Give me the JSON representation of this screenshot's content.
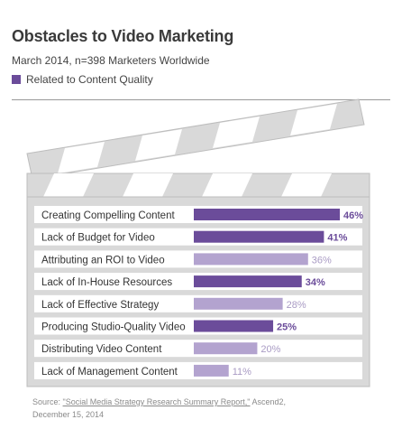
{
  "title": "Obstacles to Video Marketing",
  "subtitle": "March 2014, n=398 Marketers Worldwide",
  "legend": {
    "label": "Related to Content Quality",
    "color": "#6b4c9a"
  },
  "colors": {
    "highlight": "#6b4c9a",
    "normal": "#b3a3cf",
    "clapper_fill": "#d9d9d9",
    "clapper_stroke": "#bdbdbd"
  },
  "chart_data": {
    "type": "bar",
    "orientation": "horizontal",
    "categories": [
      "Creating Compelling Content",
      "Lack of Budget for Video",
      "Attributing an ROI to Video",
      "Lack of In-House Resources",
      "Lack of Effective Strategy",
      "Producing Studio-Quality Video",
      "Distributing Video Content",
      "Lack of Management Content"
    ],
    "values": [
      46,
      41,
      36,
      34,
      28,
      25,
      20,
      11
    ],
    "value_labels": [
      "46%",
      "41%",
      "36%",
      "34%",
      "28%",
      "25%",
      "20%",
      "11%"
    ],
    "highlighted": [
      true,
      true,
      false,
      true,
      false,
      true,
      false,
      false
    ],
    "unit": "%",
    "xlim": [
      0,
      46
    ],
    "grid": false,
    "legend_position": "top-left"
  },
  "source": {
    "prefix": "Source: ",
    "link_text": "\"Social Media Strategy Research Summary Report,\"",
    "suffix": " Ascend2,",
    "date": "December 15, 2014"
  }
}
